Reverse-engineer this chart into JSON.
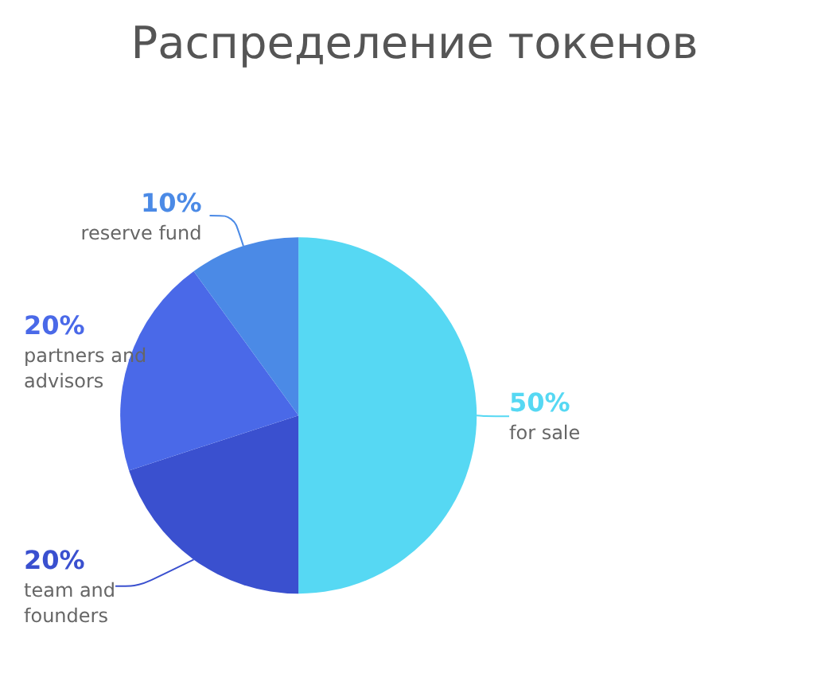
{
  "chart_data": {
    "type": "pie",
    "title": "Распределение токенов",
    "categories": [
      "for sale",
      "team and founders",
      "partners and advisors",
      "reserve fund"
    ],
    "values": [
      50,
      20,
      20,
      10
    ],
    "colors": [
      "#56d8f3",
      "#3a50cf",
      "#4a69e8",
      "#4b8ae6"
    ],
    "value_labels": [
      "50%",
      "20%",
      "20%",
      "10%"
    ],
    "legend": false
  }
}
